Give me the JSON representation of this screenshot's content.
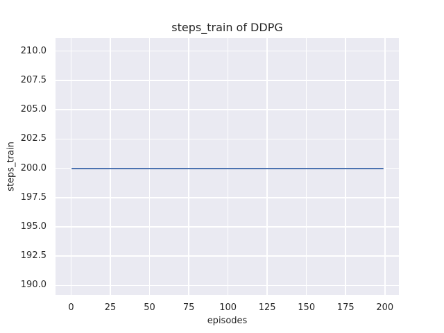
{
  "chart_data": {
    "type": "line",
    "title": "steps_train of DDPG",
    "xlabel": "episodes",
    "ylabel": "steps_train",
    "series": [
      {
        "name": "steps_train",
        "color": "#4c72b0",
        "x": [
          0,
          199
        ],
        "y": [
          200,
          200
        ],
        "description": "constant horizontal line at y=200 spanning episodes 0 to 199"
      }
    ],
    "xlim": [
      -9.95,
      208.95
    ],
    "ylim": [
      189.2,
      211.1
    ],
    "xtick_values": [
      0,
      25,
      50,
      75,
      100,
      125,
      150,
      175,
      200
    ],
    "xtick_labels": [
      "0",
      "25",
      "50",
      "75",
      "100",
      "125",
      "150",
      "175",
      "200"
    ],
    "ytick_values": [
      190.0,
      192.5,
      195.0,
      197.5,
      200.0,
      202.5,
      205.0,
      207.5,
      210.0
    ],
    "ytick_labels": [
      "190.0",
      "192.5",
      "195.0",
      "197.5",
      "200.0",
      "202.5",
      "205.0",
      "207.5",
      "210.0"
    ],
    "grid": true,
    "legend": false,
    "style": "seaborn-darkgrid",
    "plot_bg_color": "#eaeaf2",
    "grid_color": "#ffffff",
    "text_color": "#262626",
    "figure_bg_color": "#ffffff"
  }
}
